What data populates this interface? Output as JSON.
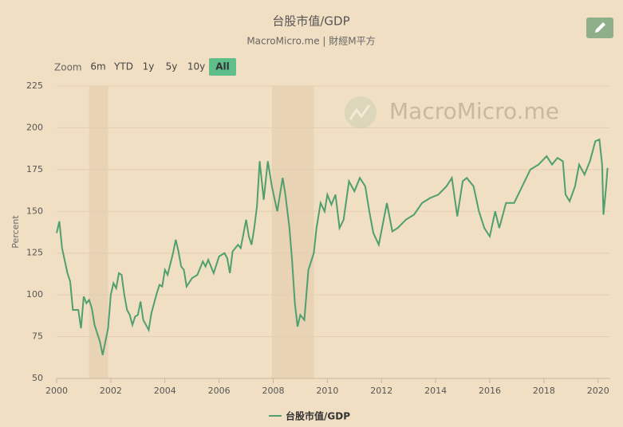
{
  "chart_data": {
    "type": "line",
    "title": "台股市值/GDP",
    "subtitle": "MacroMicro.me | 財經M平方",
    "y_label": "Percent",
    "watermark": "MacroMicro.me",
    "x": [
      2000.0,
      2000.1,
      2000.2,
      2000.4,
      2000.5,
      2000.6,
      2000.8,
      2000.9,
      2001.0,
      2001.1,
      2001.2,
      2001.3,
      2001.4,
      2001.6,
      2001.7,
      2001.9,
      2002.0,
      2002.1,
      2002.2,
      2002.3,
      2002.4,
      2002.5,
      2002.6,
      2002.7,
      2002.8,
      2002.9,
      2003.0,
      2003.1,
      2003.2,
      2003.4,
      2003.5,
      2003.7,
      2003.8,
      2003.9,
      2004.0,
      2004.1,
      2004.3,
      2004.4,
      2004.5,
      2004.6,
      2004.7,
      2004.8,
      2005.0,
      2005.2,
      2005.4,
      2005.5,
      2005.6,
      2005.8,
      2005.9,
      2006.0,
      2006.2,
      2006.3,
      2006.4,
      2006.5,
      2006.7,
      2006.8,
      2007.0,
      2007.1,
      2007.2,
      2007.3,
      2007.4,
      2007.5,
      2007.65,
      2007.8,
      2007.95,
      2008.15,
      2008.35,
      2008.45,
      2008.6,
      2008.7,
      2008.8,
      2008.9,
      2009.0,
      2009.15,
      2009.3,
      2009.4,
      2009.5,
      2009.6,
      2009.75,
      2009.9,
      2010.0,
      2010.15,
      2010.3,
      2010.45,
      2010.6,
      2010.8,
      2011.0,
      2011.2,
      2011.4,
      2011.55,
      2011.7,
      2011.9,
      2012.2,
      2012.4,
      2012.6,
      2012.9,
      2013.2,
      2013.5,
      2013.8,
      2014.1,
      2014.4,
      2014.6,
      2014.8,
      2015.0,
      2015.15,
      2015.4,
      2015.6,
      2015.8,
      2016.0,
      2016.2,
      2016.35,
      2016.6,
      2016.9,
      2017.2,
      2017.5,
      2017.8,
      2018.1,
      2018.3,
      2018.5,
      2018.7,
      2018.8,
      2018.95,
      2019.15,
      2019.3,
      2019.5,
      2019.7,
      2019.9,
      2020.05,
      2020.15,
      2020.2,
      2020.3,
      2020.35
    ],
    "series": [
      {
        "name": "台股市值/GDP",
        "color": "#4f9f6f",
        "values": [
          137,
          144,
          128,
          113,
          108,
          91,
          91,
          80,
          99,
          95,
          97,
          92,
          82,
          72,
          64,
          80,
          100,
          107,
          104,
          113,
          112,
          100,
          91,
          88,
          82,
          87,
          88,
          96,
          85,
          79,
          89,
          101,
          106,
          105,
          115,
          112,
          125,
          133,
          126,
          117,
          115,
          105,
          110,
          112,
          120,
          117,
          121,
          113,
          118,
          123,
          125,
          122,
          113,
          126,
          130,
          128,
          145,
          135,
          130,
          140,
          153,
          180,
          157,
          180,
          165,
          150,
          170,
          160,
          140,
          120,
          95,
          81,
          88,
          85,
          115,
          120,
          125,
          140,
          155,
          150,
          160,
          154,
          160,
          140,
          145,
          168,
          162,
          170,
          165,
          150,
          137,
          130,
          155,
          138,
          140,
          145,
          148,
          155,
          158,
          160,
          165,
          170,
          147,
          168,
          170,
          165,
          150,
          140,
          135,
          150,
          140,
          155,
          155,
          165,
          175,
          178,
          183,
          178,
          182,
          180,
          160,
          156,
          165,
          178,
          172,
          180,
          192,
          193,
          178,
          148,
          165,
          176
        ]
      }
    ],
    "bands": [
      [
        2001.2,
        2001.9
      ],
      [
        2007.95,
        2009.5
      ]
    ],
    "xlim": [
      2000,
      2020.45
    ],
    "xticks": [
      2000,
      2002,
      2004,
      2006,
      2008,
      2010,
      2012,
      2014,
      2016,
      2018,
      2020
    ],
    "ylim": [
      50,
      225
    ],
    "yticks": [
      50,
      75,
      100,
      125,
      150,
      175,
      200,
      225
    ],
    "grid": true
  },
  "controls": {
    "zoom_label": "Zoom",
    "buttons": [
      "6m",
      "YTD",
      "1y",
      "5y",
      "10y",
      "All"
    ],
    "selected": "All"
  }
}
